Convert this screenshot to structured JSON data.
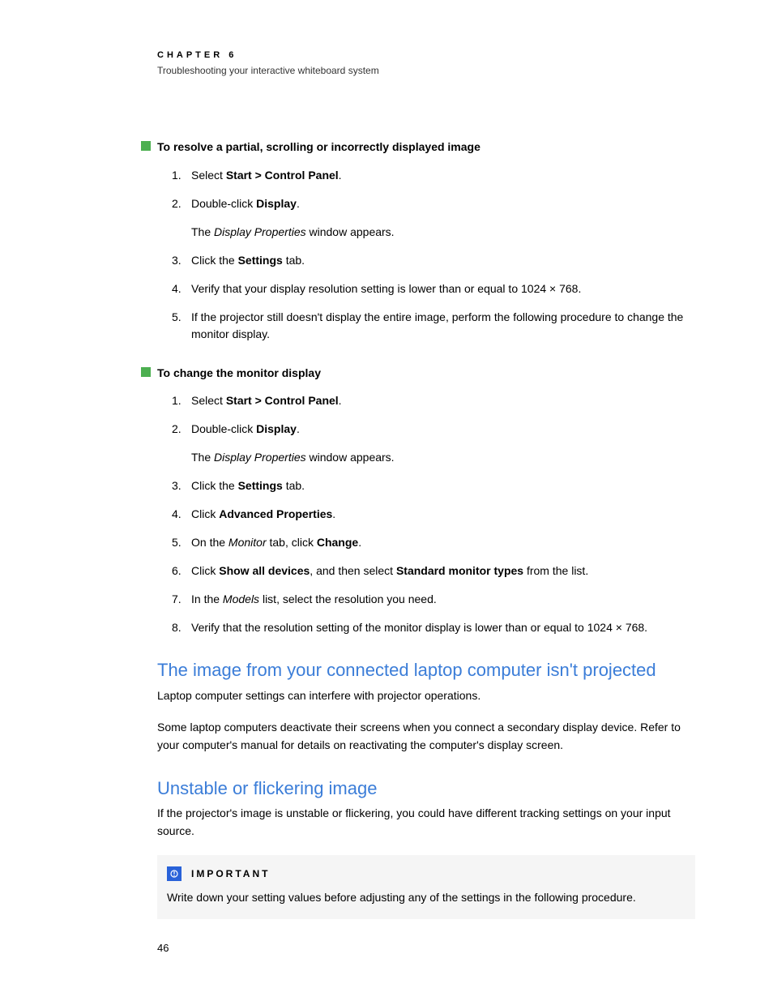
{
  "header": {
    "chapter_label": "CHAPTER 6",
    "chapter_subtitle": "Troubleshooting your interactive whiteboard system"
  },
  "procedures": [
    {
      "title": "To resolve a partial, scrolling or incorrectly displayed image",
      "steps": [
        {
          "num": "1.",
          "html": "Select <b>Start > Control Panel</b>."
        },
        {
          "num": "2.",
          "html": "Double-click <b>Display</b>.",
          "sub_html": "The <i>Display Properties</i> window appears."
        },
        {
          "num": "3.",
          "html": "Click the <b>Settings</b> tab."
        },
        {
          "num": "4.",
          "html": "Verify that your display resolution setting is lower than or equal to 1024 × 768."
        },
        {
          "num": "5.",
          "html": "If the projector still doesn't display the entire image, perform the following procedure to change the monitor display."
        }
      ]
    },
    {
      "title": "To change the monitor display",
      "steps": [
        {
          "num": "1.",
          "html": "Select <b>Start > Control Panel</b>."
        },
        {
          "num": "2.",
          "html": "Double-click <b>Display</b>.",
          "sub_html": "The <i>Display Properties</i> window appears."
        },
        {
          "num": "3.",
          "html": "Click the <b>Settings</b> tab."
        },
        {
          "num": "4.",
          "html": "Click <b>Advanced Properties</b>."
        },
        {
          "num": "5.",
          "html": "On the <i>Monitor</i> tab, click <b>Change</b>."
        },
        {
          "num": "6.",
          "html": "Click <b>Show all devices</b>, and then select <b>Standard monitor types</b> from the list."
        },
        {
          "num": "7.",
          "html": "In the <i>Models</i> list, select the resolution you need."
        },
        {
          "num": "8.",
          "html": "Verify that the resolution setting of the monitor display is lower than or equal to 1024 × 768."
        }
      ]
    }
  ],
  "sections": [
    {
      "heading": "The image from your connected laptop computer isn't projected",
      "paragraphs": [
        "Laptop computer settings can interfere with projector operations.",
        "Some laptop computers deactivate their screens when you connect a secondary display device. Refer to your computer's manual for details on reactivating the computer's display screen."
      ]
    },
    {
      "heading": "Unstable or flickering image",
      "paragraphs": [
        "If the projector's image is unstable or flickering, you could have different tracking settings on your input source."
      ]
    }
  ],
  "important": {
    "label": "IMPORTANT",
    "text": "Write down your setting values before adjusting any of the settings in the following procedure."
  },
  "page_number": "46",
  "styling": {
    "heading_color": "#3B7DD8",
    "bullet_color": "#4CAF50",
    "important_bg": "#f5f5f5",
    "important_icon_bg": "#2962D9",
    "body_font_size": 14,
    "heading_font_size": 22,
    "chapter_label_letter_spacing": 4
  }
}
